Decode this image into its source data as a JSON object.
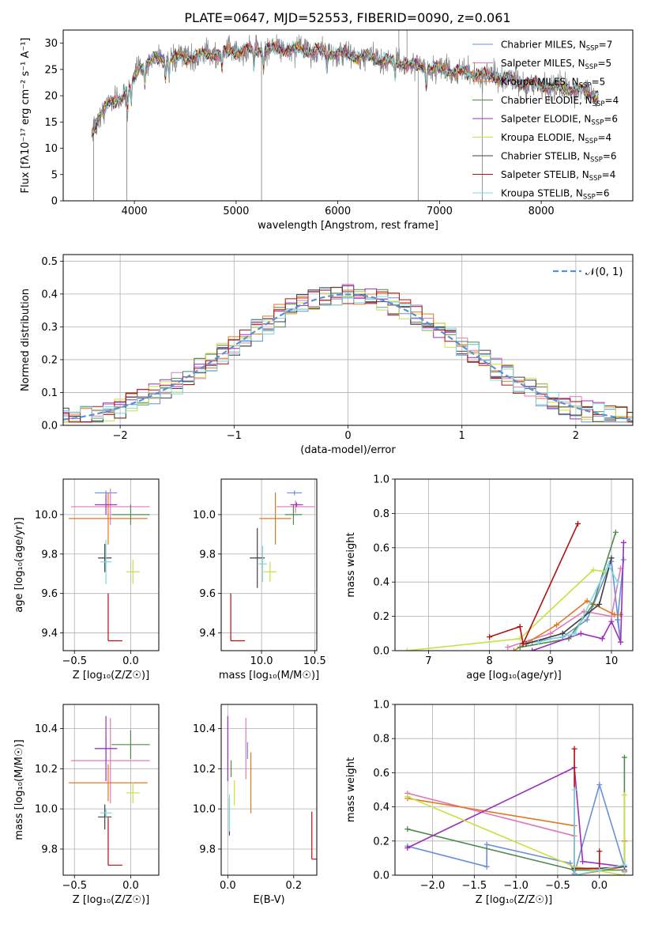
{
  "title": "PLATE=0647, MJD=52553, FIBERID=0090, z=0.061",
  "colors": {
    "chabrier_miles": "#6b8fd8",
    "salpeter_miles": "#e07ab8",
    "kroupa_miles": "#e07820",
    "chabrier_elodie": "#4f8a4f",
    "salpeter_elodie": "#9b2fb8",
    "kroupa_elodie": "#c8e040",
    "chabrier_stelib": "#404040",
    "salpeter_stelib": "#b01010",
    "kroupa_stelib": "#7fd8e0",
    "data": "#808080"
  },
  "chart_data": [
    {
      "id": "spectrum",
      "type": "line",
      "xlabel": "wavelength [Angstrom, rest frame]",
      "ylabel": "Flux [fλ10⁻¹⁷ erg cm⁻² s⁻¹ A⁻¹]",
      "xlim": [
        3300,
        8900
      ],
      "ylim": [
        0,
        32.5
      ],
      "xticks": [
        4000,
        5000,
        6000,
        7000,
        8000
      ],
      "yticks": [
        0,
        5,
        10,
        15,
        20,
        25,
        30
      ],
      "grid": false,
      "legend_position": "top-right",
      "legend": [
        {
          "label": "Chabrier MILES, N",
          "sub": "SSP",
          "value": "=7",
          "color": "#6b8fd8"
        },
        {
          "label": "Salpeter MILES, N",
          "sub": "SSP",
          "value": "=5",
          "color": "#e07ab8"
        },
        {
          "label": "Kroupa MILES, N",
          "sub": "SSP",
          "value": "=5",
          "color": "#e07820"
        },
        {
          "label": "Chabrier ELODIE, N",
          "sub": "SSP",
          "value": "=4",
          "color": "#4f8a4f"
        },
        {
          "label": "Salpeter ELODIE, N",
          "sub": "SSP",
          "value": "=6",
          "color": "#9b2fb8"
        },
        {
          "label": "Kroupa ELODIE, N",
          "sub": "SSP",
          "value": "=4",
          "color": "#c8e040"
        },
        {
          "label": "Chabrier STELIB, N",
          "sub": "SSP",
          "value": "=6",
          "color": "#404040"
        },
        {
          "label": "Salpeter STELIB, N",
          "sub": "SSP",
          "value": "=4",
          "color": "#b01010"
        },
        {
          "label": "Kroupa STELIB, N",
          "sub": "SSP",
          "value": "=6",
          "color": "#7fd8e0"
        }
      ],
      "continuum": [
        [
          3580,
          13
        ],
        [
          3650,
          16
        ],
        [
          3750,
          18.5
        ],
        [
          3850,
          19.5
        ],
        [
          3950,
          21
        ],
        [
          4050,
          25.5
        ],
        [
          4200,
          27
        ],
        [
          4400,
          27
        ],
        [
          4600,
          27.5
        ],
        [
          4800,
          28
        ],
        [
          5000,
          28.5
        ],
        [
          5200,
          28.8
        ],
        [
          5400,
          29
        ],
        [
          5600,
          28.8
        ],
        [
          5800,
          28.5
        ],
        [
          6000,
          28
        ],
        [
          6200,
          27.5
        ],
        [
          6400,
          27
        ],
        [
          6600,
          26.5
        ],
        [
          6800,
          25.5
        ],
        [
          7000,
          25
        ],
        [
          7200,
          24.5
        ],
        [
          7400,
          24
        ],
        [
          7600,
          23.5
        ],
        [
          7800,
          22.5
        ],
        [
          8000,
          22
        ],
        [
          8200,
          21.5
        ],
        [
          8400,
          21
        ],
        [
          8560,
          20
        ]
      ]
    },
    {
      "id": "residuals",
      "type": "line",
      "xlabel": "(data-model)/error",
      "ylabel": "Normed distribution",
      "xlim": [
        -2.5,
        2.5
      ],
      "ylim": [
        0,
        0.52
      ],
      "xticks": [
        -2,
        -1,
        0,
        1,
        2
      ],
      "xticklabels": [
        "−2",
        "−1",
        "0",
        "1",
        "2"
      ],
      "yticks": [
        0,
        0.1,
        0.2,
        0.3,
        0.4,
        0.5
      ],
      "yticklabels": [
        "0.0",
        "0.1",
        "0.2",
        "0.3",
        "0.4",
        "0.5"
      ],
      "grid": true,
      "legend_position": "top-right",
      "gauss_label": "𝒩(0, 1)",
      "gauss_color": "#5b8ed8"
    },
    {
      "id": "age-vs-Z",
      "type": "scatter",
      "xlabel": "Z [log₁₀(Z/Z☉)]",
      "ylabel": "age  [log₁₀(age/yr)]",
      "xlim": [
        -0.6,
        0.25
      ],
      "ylim": [
        9.31,
        10.18
      ],
      "xticks": [
        -0.5,
        0,
        0.5
      ],
      "xticklabels": [
        "−0.5",
        "0.0",
        ""
      ],
      "yticks": [
        9.4,
        9.6,
        9.8,
        10.0
      ],
      "yticklabels": [
        "9.4",
        "9.6",
        "9.8",
        "10.0"
      ],
      "grid": true,
      "points": [
        {
          "model": "chabrier_miles",
          "x": -0.22,
          "y": 10.11,
          "xerr": 0.1,
          "yerr": 0.02
        },
        {
          "model": "salpeter_miles",
          "x": -0.18,
          "y": 10.04,
          "xerr": 0.35,
          "yerr": 0.1
        },
        {
          "model": "kroupa_miles",
          "x": -0.2,
          "y": 9.98,
          "xerr": 0.35,
          "yerr": 0.14
        },
        {
          "model": "chabrier_elodie",
          "x": 0.0,
          "y": 10.0,
          "xerr": 0.17,
          "yerr": 0.06
        },
        {
          "model": "salpeter_elodie",
          "x": -0.22,
          "y": 10.05,
          "xerr": 0.1,
          "yerr": 0.06
        },
        {
          "model": "kroupa_elodie",
          "x": 0.02,
          "y": 9.71,
          "xerr": 0.06,
          "yerr": 0.07
        },
        {
          "model": "chabrier_stelib",
          "x": -0.23,
          "y": 9.78,
          "xerr": 0.06,
          "yerr": 0.08
        },
        {
          "model": "salpeter_stelib",
          "x": -0.2,
          "y": 9.36,
          "xerr": 0.06,
          "yerr": 0.0
        },
        {
          "model": "kroupa_stelib",
          "x": -0.22,
          "y": 9.76,
          "xerr": 0.05,
          "yerr": 0.12
        }
      ]
    },
    {
      "id": "age-vs-mass",
      "type": "scatter",
      "xlabel": "mass [log₁₀(M/M☉)]",
      "ylabel": "",
      "xlim": [
        9.62,
        10.52
      ],
      "ylim": [
        9.31,
        10.18
      ],
      "xticks": [
        10.0,
        10.5
      ],
      "xticklabels": [
        "10.0",
        "10.5"
      ],
      "yticks": [
        9.4,
        9.6,
        9.8,
        10.0
      ],
      "yticklabels": [
        "9.4",
        "9.6",
        "9.8",
        "10.0"
      ],
      "grid": true,
      "points": [
        {
          "model": "chabrier_miles",
          "x": 10.31,
          "y": 10.11,
          "xerr": 0.07,
          "yerr": 0.02
        },
        {
          "model": "salpeter_miles",
          "x": 10.32,
          "y": 10.04,
          "xerr": 0.18,
          "yerr": 0.04
        },
        {
          "model": "kroupa_miles",
          "x": 10.13,
          "y": 9.98,
          "xerr": 0.15,
          "yerr": 0.14
        },
        {
          "model": "chabrier_elodie",
          "x": 10.3,
          "y": 10.0,
          "xerr": 0.08,
          "yerr": 0.06
        },
        {
          "model": "salpeter_elodie",
          "x": 10.33,
          "y": 10.05,
          "xerr": 0.06,
          "yerr": 0.02
        },
        {
          "model": "kroupa_elodie",
          "x": 10.08,
          "y": 9.71,
          "xerr": 0.06,
          "yerr": 0.06
        },
        {
          "model": "chabrier_stelib",
          "x": 9.96,
          "y": 9.78,
          "xerr": 0.07,
          "yerr": 0.16
        },
        {
          "model": "salpeter_stelib",
          "x": 9.71,
          "y": 9.36,
          "xerr": 0.04,
          "yerr": 0.0
        },
        {
          "model": "kroupa_stelib",
          "x": 10.01,
          "y": 9.75,
          "xerr": 0.04,
          "yerr": 0.1
        }
      ]
    },
    {
      "id": "massweight-vs-age",
      "type": "line",
      "xlabel": "age  [log₁₀(age/yr)]",
      "ylabel": "mass weight",
      "xlim": [
        6.45,
        10.35
      ],
      "ylim": [
        0,
        1.0
      ],
      "xticks": [
        7,
        8,
        9,
        10
      ],
      "yticks": [
        0,
        0.2,
        0.4,
        0.6,
        0.8,
        1.0
      ],
      "yticklabels": [
        "0.0",
        "0.2",
        "0.4",
        "0.6",
        "0.8",
        "1.0"
      ],
      "grid": true,
      "series": [
        {
          "model": "chabrier_miles",
          "x": [
            8.7,
            9.2,
            9.6,
            10.0,
            10.15,
            10.1,
            10.2
          ],
          "y": [
            0.05,
            0.08,
            0.18,
            0.52,
            0.05,
            0.18,
            0.53
          ]
        },
        {
          "model": "salpeter_miles",
          "x": [
            8.3,
            9.0,
            9.55,
            10.0,
            10.15
          ],
          "y": [
            0.02,
            0.1,
            0.23,
            0.2,
            0.48
          ]
        },
        {
          "model": "kroupa_miles",
          "x": [
            8.4,
            9.1,
            9.6,
            10.05,
            10.15
          ],
          "y": [
            0.0,
            0.15,
            0.29,
            0.21,
            0.21
          ]
        },
        {
          "model": "chabrier_elodie",
          "x": [
            8.5,
            9.3,
            9.7,
            10.07
          ],
          "y": [
            0.02,
            0.07,
            0.27,
            0.69
          ]
        },
        {
          "model": "salpeter_elodie",
          "x": [
            8.7,
            9.5,
            9.85,
            10.0,
            10.15,
            10.2
          ],
          "y": [
            0.0,
            0.1,
            0.07,
            0.17,
            0.05,
            0.63
          ]
        },
        {
          "model": "kroupa_elodie",
          "x": [
            6.65,
            8.5,
            9.7,
            9.9
          ],
          "y": [
            0.0,
            0.07,
            0.47,
            0.46
          ]
        },
        {
          "model": "chabrier_stelib",
          "x": [
            8.6,
            9.2,
            9.8,
            10.0
          ],
          "y": [
            0.04,
            0.1,
            0.27,
            0.54
          ]
        },
        {
          "model": "salpeter_stelib",
          "x": [
            8.0,
            8.5,
            8.55,
            9.45
          ],
          "y": [
            0.08,
            0.14,
            0.04,
            0.74
          ]
        },
        {
          "model": "kroupa_stelib",
          "x": [
            8.8,
            9.4,
            9.95,
            10.1
          ],
          "y": [
            0.05,
            0.1,
            0.5,
            0.4
          ]
        }
      ]
    },
    {
      "id": "mass-vs-Z",
      "type": "scatter",
      "xlabel": "Z [log₁₀(Z/Z☉)]",
      "ylabel": "mass [log₁₀(M/M☉)]",
      "xlim": [
        -0.6,
        0.25
      ],
      "ylim": [
        9.67,
        10.52
      ],
      "xticks": [
        -0.5,
        0,
        0.5
      ],
      "xticklabels": [
        "−0.5",
        "0.0",
        ""
      ],
      "yticks": [
        9.8,
        10.0,
        10.2,
        10.4
      ],
      "yticklabels": [
        "9.8",
        "10.0",
        "10.2",
        "10.4"
      ],
      "grid": true,
      "points": [
        {
          "model": "chabrier_miles",
          "x": -0.22,
          "y": 10.3,
          "xerr": 0.1,
          "yerr": 0.07
        },
        {
          "model": "salpeter_miles",
          "x": -0.18,
          "y": 10.24,
          "xerr": 0.35,
          "yerr": 0.22
        },
        {
          "model": "kroupa_miles",
          "x": -0.2,
          "y": 10.13,
          "xerr": 0.35,
          "yerr": 0.1
        },
        {
          "model": "chabrier_elodie",
          "x": 0.0,
          "y": 10.32,
          "xerr": 0.17,
          "yerr": 0.08
        },
        {
          "model": "salpeter_elodie",
          "x": -0.22,
          "y": 10.3,
          "xerr": 0.1,
          "yerr": 0.17
        },
        {
          "model": "kroupa_elodie",
          "x": 0.02,
          "y": 10.08,
          "xerr": 0.06,
          "yerr": 0.06
        },
        {
          "model": "chabrier_stelib",
          "x": -0.23,
          "y": 9.96,
          "xerr": 0.06,
          "yerr": 0.07
        },
        {
          "model": "salpeter_stelib",
          "x": -0.2,
          "y": 9.72,
          "xerr": 0.06,
          "yerr": 0.0
        },
        {
          "model": "kroupa_stelib",
          "x": -0.22,
          "y": 9.98,
          "xerr": 0.05,
          "yerr": 0.03
        }
      ]
    },
    {
      "id": "mass-vs-EBV",
      "type": "scatter",
      "xlabel": "E(B-V)",
      "ylabel": "",
      "xlim": [
        -0.02,
        0.27
      ],
      "ylim": [
        9.67,
        10.52
      ],
      "xticks": [
        0.0,
        0.2
      ],
      "xticklabels": [
        "0.0",
        "0.2"
      ],
      "yticks": [
        9.8,
        10.0,
        10.2,
        10.4
      ],
      "yticklabels": [
        "9.8",
        "10.0",
        "10.2",
        "10.4"
      ],
      "grid": true,
      "points": [
        {
          "model": "chabrier_miles",
          "x": 0.06,
          "y": 10.29,
          "xerr": 0.0,
          "yerr": 0.05
        },
        {
          "model": "salpeter_miles",
          "x": 0.055,
          "y": 10.3,
          "xerr": 0.0,
          "yerr": 0.16
        },
        {
          "model": "kroupa_miles",
          "x": 0.07,
          "y": 10.13,
          "xerr": 0.0,
          "yerr": 0.16
        },
        {
          "model": "chabrier_elodie",
          "x": 0.01,
          "y": 10.2,
          "xerr": 0.0,
          "yerr": 0.05
        },
        {
          "model": "salpeter_elodie",
          "x": 0.0,
          "y": 10.3,
          "xerr": 0.0,
          "yerr": 0.17
        },
        {
          "model": "kroupa_elodie",
          "x": 0.02,
          "y": 10.08,
          "xerr": 0.0,
          "yerr": 0.07
        },
        {
          "model": "chabrier_stelib",
          "x": 0.005,
          "y": 9.96,
          "xerr": 0.0,
          "yerr": 0.1
        },
        {
          "model": "salpeter_stelib",
          "x": 0.255,
          "y": 9.75,
          "xerr": 0.0,
          "yerr": 0.04
        },
        {
          "model": "kroupa_stelib",
          "x": 0.005,
          "y": 9.98,
          "xerr": 0.0,
          "yerr": 0.1
        }
      ]
    },
    {
      "id": "massweight-vs-Z",
      "type": "line",
      "xlabel": "Z [log₁₀(Z/Z☉)]",
      "ylabel": "mass weight",
      "xlim": [
        -2.45,
        0.4
      ],
      "ylim": [
        0,
        1.0
      ],
      "xticks": [
        -2.0,
        -1.5,
        -1.0,
        -0.5,
        0.0
      ],
      "xticklabels": [
        "−2.0",
        "−1.5",
        "−1.0",
        "−0.5",
        "0.0"
      ],
      "yticks": [
        0,
        0.2,
        0.4,
        0.6,
        0.8,
        1.0
      ],
      "yticklabels": [
        "0.0",
        "0.2",
        "0.4",
        "0.6",
        "0.8",
        "1.0"
      ],
      "grid": true,
      "series": [
        {
          "model": "chabrier_miles",
          "x": [
            -2.3,
            -1.35,
            -1.35,
            -0.35,
            -0.3,
            0.0,
            0.3,
            0.3
          ],
          "y": [
            0.17,
            0.05,
            0.18,
            0.07,
            0.01,
            0.53,
            0.05,
            0.02
          ]
        },
        {
          "model": "salpeter_miles",
          "x": [
            -2.3,
            -0.3,
            -0.3,
            0.3
          ],
          "y": [
            0.48,
            0.23,
            0.0,
            0.05
          ]
        },
        {
          "model": "kroupa_miles",
          "x": [
            -2.3,
            -0.3,
            -0.3,
            0.3,
            0.3
          ],
          "y": [
            0.45,
            0.29,
            0.0,
            0.05,
            0.2
          ]
        },
        {
          "model": "chabrier_elodie",
          "x": [
            -2.3,
            -0.3,
            0.3,
            0.3
          ],
          "y": [
            0.27,
            0.03,
            0.03,
            0.69
          ]
        },
        {
          "model": "salpeter_elodie",
          "x": [
            -2.3,
            -0.3,
            -0.2,
            0.3,
            0.3
          ],
          "y": [
            0.16,
            0.63,
            0.08,
            0.05,
            0.03
          ]
        },
        {
          "model": "kroupa_elodie",
          "x": [
            -2.3,
            -0.3,
            0.3,
            0.3
          ],
          "y": [
            0.46,
            0.05,
            0.0,
            0.47
          ]
        },
        {
          "model": "chabrier_stelib",
          "x": [
            -0.3,
            -0.3,
            0.0,
            0.3
          ],
          "y": [
            0.0,
            0.04,
            0.04,
            0.05
          ]
        },
        {
          "model": "salpeter_stelib",
          "x": [
            -0.3,
            -0.3,
            0.0,
            0.0
          ],
          "y": [
            0.74,
            0.04,
            0.04,
            0.14
          ]
        },
        {
          "model": "kroupa_stelib",
          "x": [
            -0.3,
            -0.3,
            0.0,
            0.3
          ],
          "y": [
            0.5,
            0.0,
            0.03,
            0.06
          ]
        }
      ]
    }
  ]
}
